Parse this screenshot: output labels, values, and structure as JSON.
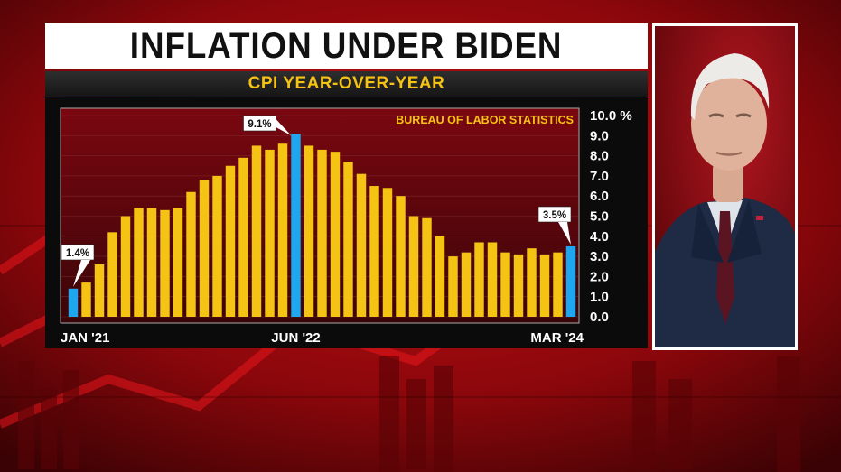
{
  "header": {
    "title": "INFLATION UNDER BIDEN",
    "subtitle": "CPI YEAR-OVER-YEAR"
  },
  "photo": {
    "icon": "person-portrait-icon"
  },
  "colors": {
    "bar": "#f4c313",
    "highlight": "#1ea6ee",
    "source_text": "#f4c313",
    "axis_text": "#ffffff",
    "background": "#7a0508"
  },
  "chart_data": {
    "type": "bar",
    "source": "BUREAU OF LABOR STATISTICS",
    "x_tick_labels": [
      "JAN '21",
      "JUN '22",
      "MAR '24"
    ],
    "categories": [
      "Jan '21",
      "Feb '21",
      "Mar '21",
      "Apr '21",
      "May '21",
      "Jun '21",
      "Jul '21",
      "Aug '21",
      "Sep '21",
      "Oct '21",
      "Nov '21",
      "Dec '21",
      "Jan '22",
      "Feb '22",
      "Mar '22",
      "Apr '22",
      "May '22",
      "Jun '22",
      "Jul '22",
      "Aug '22",
      "Sep '22",
      "Oct '22",
      "Nov '22",
      "Dec '22",
      "Jan '23",
      "Feb '23",
      "Mar '23",
      "Apr '23",
      "May '23",
      "Jun '23",
      "Jul '23",
      "Aug '23",
      "Sep '23",
      "Oct '23",
      "Nov '23",
      "Dec '23",
      "Jan '24",
      "Feb '24",
      "Mar '24"
    ],
    "values": [
      1.4,
      1.7,
      2.6,
      4.2,
      5.0,
      5.4,
      5.4,
      5.3,
      5.4,
      6.2,
      6.8,
      7.0,
      7.5,
      7.9,
      8.5,
      8.3,
      8.6,
      9.1,
      8.5,
      8.3,
      8.2,
      7.7,
      7.1,
      6.5,
      6.4,
      6.0,
      5.0,
      4.9,
      4.0,
      3.0,
      3.2,
      3.7,
      3.7,
      3.2,
      3.1,
      3.4,
      3.1,
      3.2,
      3.5
    ],
    "highlight_indices": [
      0,
      17,
      38
    ],
    "callouts": [
      {
        "index": 0,
        "label": "1.4%"
      },
      {
        "index": 17,
        "label": "9.1%"
      },
      {
        "index": 38,
        "label": "3.5%"
      }
    ],
    "y_tick_labels": [
      "10.0 %",
      "9.0",
      "8.0",
      "7.0",
      "6.0",
      "5.0",
      "4.0",
      "3.0",
      "2.0",
      "1.0",
      "0.0"
    ],
    "ylim": [
      0,
      10
    ],
    "grid": true
  }
}
